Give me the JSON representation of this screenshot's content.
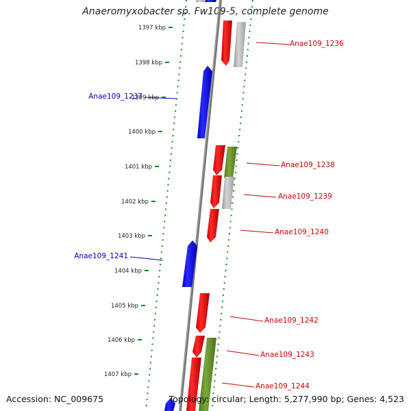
{
  "title": "Anaeromyxobacter sp. Fw109-5, complete genome",
  "footer": {
    "accession": "Accession: NC_009675",
    "summary": "Topology: circular; Length: 5,277,990 bp; Genes: 4,523"
  },
  "colors": {
    "forward_cds": "#ff0000",
    "reverse_cds": "#0000ff",
    "rna": "#669933",
    "other": "#bbbbbb",
    "backbone": "#777777",
    "ticks": "#118811",
    "forward_label": "#cc0000",
    "reverse_label": "#0000aa"
  },
  "kbp_ticks": [
    {
      "label": "1397 kbp"
    },
    {
      "label": "1398 kbp"
    },
    {
      "label": "1399 kbp"
    },
    {
      "label": "1400 kbp"
    },
    {
      "label": "1401 kbp"
    },
    {
      "label": "1402 kbp"
    },
    {
      "label": "1403 kbp"
    },
    {
      "label": "1404 kbp"
    },
    {
      "label": "1405 kbp"
    },
    {
      "label": "1406 kbp"
    },
    {
      "label": "1407 kbp"
    }
  ],
  "gene_labels": [
    {
      "text": "Anae109_1236",
      "strand": "forward"
    },
    {
      "text": "Anae109_1237",
      "strand": "reverse"
    },
    {
      "text": "Anae109_1238",
      "strand": "forward"
    },
    {
      "text": "Anae109_1239",
      "strand": "forward"
    },
    {
      "text": "Anae109_1240",
      "strand": "forward"
    },
    {
      "text": "Anae109_1241",
      "strand": "reverse"
    },
    {
      "text": "Anae109_1242",
      "strand": "forward"
    },
    {
      "text": "Anae109_1243",
      "strand": "forward"
    },
    {
      "text": "Anae109_1244",
      "strand": "forward"
    }
  ]
}
